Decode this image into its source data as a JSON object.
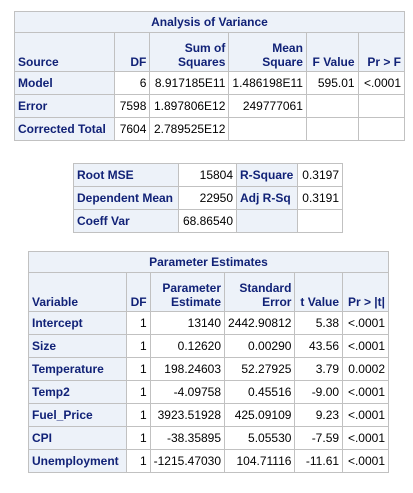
{
  "anova": {
    "title": "Analysis of Variance",
    "headers": [
      "Source",
      "DF",
      "Sum of Squares",
      "Mean Square",
      "F Value",
      "Pr > F"
    ],
    "rows": [
      [
        "Model",
        "6",
        "8.917185E11",
        "1.486198E11",
        "595.01",
        "<.0001"
      ],
      [
        "Error",
        "7598",
        "1.897806E12",
        "249777061",
        "",
        ""
      ],
      [
        "Corrected Total",
        "7604",
        "2.789525E12",
        "",
        "",
        ""
      ]
    ]
  },
  "fit": {
    "rows": [
      [
        "Root MSE",
        "15804",
        "R-Square",
        "0.3197"
      ],
      [
        "Dependent Mean",
        "22950",
        "Adj R-Sq",
        "0.3191"
      ],
      [
        "Coeff Var",
        "68.86540",
        "",
        ""
      ]
    ]
  },
  "params": {
    "title": "Parameter Estimates",
    "headers": [
      "Variable",
      "DF",
      "Parameter Estimate",
      "Standard Error",
      "t Value",
      "Pr > |t|"
    ],
    "rows": [
      [
        "Intercept",
        "1",
        "13140",
        "2442.90812",
        "5.38",
        "<.0001"
      ],
      [
        "Size",
        "1",
        "0.12620",
        "0.00290",
        "43.56",
        "<.0001"
      ],
      [
        "Temperature",
        "1",
        "198.24603",
        "52.27925",
        "3.79",
        "0.0002"
      ],
      [
        "Temp2",
        "1",
        "-4.09758",
        "0.45516",
        "-9.00",
        "<.0001"
      ],
      [
        "Fuel_Price",
        "1",
        "3923.51928",
        "425.09109",
        "9.23",
        "<.0001"
      ],
      [
        "CPI",
        "1",
        "-38.35895",
        "5.05530",
        "-7.59",
        "<.0001"
      ],
      [
        "Unemployment",
        "1",
        "-1215.47030",
        "104.71116",
        "-11.61",
        "<.0001"
      ]
    ]
  }
}
